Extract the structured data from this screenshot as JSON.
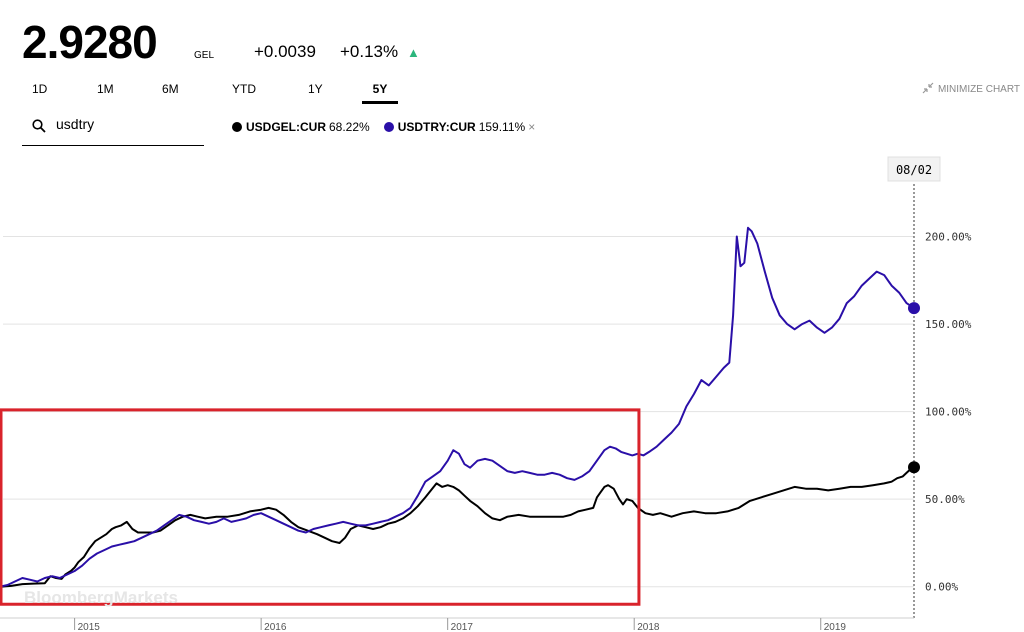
{
  "quote": {
    "price": "2.9280",
    "currency": "GEL",
    "change": "+0.0039",
    "change_pct": "+0.13%",
    "direction": "up"
  },
  "ranges": [
    {
      "label": "1D",
      "active": false
    },
    {
      "label": "1M",
      "active": false
    },
    {
      "label": "6M",
      "active": false
    },
    {
      "label": "YTD",
      "active": false
    },
    {
      "label": "1Y",
      "active": false
    },
    {
      "label": "5Y",
      "active": true
    }
  ],
  "minimize_label": "MINIMIZE CHART",
  "search": {
    "value": "usdtry"
  },
  "legend": [
    {
      "name": "USDGEL:CUR",
      "value": "68.22%",
      "color": "#000000",
      "removable": false
    },
    {
      "name": "USDTRY:CUR",
      "value": "159.11%",
      "color": "#2a0fa8",
      "removable": true,
      "remove_label": "×"
    }
  ],
  "watermark": "BloombergMarkets",
  "colors": {
    "accent_up": "#2cb67d",
    "highlight_box": "#d9232b",
    "grid": "#e3e3e3"
  },
  "chart_data": {
    "type": "line",
    "x_unit": "year",
    "xlim": [
      2014.6,
      2019.5
    ],
    "ylim": [
      -15,
      230
    ],
    "y_ticks": [
      0,
      50,
      100,
      150,
      200
    ],
    "y_tick_labels": [
      "0.00%",
      "50.00%",
      "100.00%",
      "150.00%",
      "200.00%"
    ],
    "x_ticks": [
      2015,
      2016,
      2017,
      2018,
      2019
    ],
    "x_tick_labels": [
      "2015",
      "2016",
      "2017",
      "2018",
      "2019"
    ],
    "cursor_label": "08/02",
    "grid": "horizontal",
    "series": [
      {
        "name": "USDGEL:CUR",
        "color": "#000000",
        "points": [
          [
            2014.6,
            0.0
          ],
          [
            2014.66,
            0.5
          ],
          [
            2014.72,
            1.5
          ],
          [
            2014.78,
            1.8
          ],
          [
            2014.84,
            2.0
          ],
          [
            2014.87,
            6.0
          ],
          [
            2014.9,
            5.0
          ],
          [
            2014.93,
            4.5
          ],
          [
            2014.95,
            7.0
          ],
          [
            2014.98,
            9.0
          ],
          [
            2015.0,
            11.0
          ],
          [
            2015.02,
            14.0
          ],
          [
            2015.05,
            17.0
          ],
          [
            2015.08,
            22.0
          ],
          [
            2015.11,
            26.0
          ],
          [
            2015.14,
            28.0
          ],
          [
            2015.17,
            30.0
          ],
          [
            2015.2,
            33.0
          ],
          [
            2015.22,
            34.0
          ],
          [
            2015.25,
            35.0
          ],
          [
            2015.28,
            37.0
          ],
          [
            2015.31,
            33.0
          ],
          [
            2015.34,
            31.0
          ],
          [
            2015.37,
            31.0
          ],
          [
            2015.42,
            31.0
          ],
          [
            2015.46,
            32.0
          ],
          [
            2015.5,
            35.0
          ],
          [
            2015.54,
            38.0
          ],
          [
            2015.58,
            40.0
          ],
          [
            2015.62,
            41.0
          ],
          [
            2015.66,
            40.0
          ],
          [
            2015.7,
            39.0
          ],
          [
            2015.76,
            40.0
          ],
          [
            2015.82,
            40.0
          ],
          [
            2015.88,
            41.0
          ],
          [
            2015.94,
            43.0
          ],
          [
            2016.0,
            44.0
          ],
          [
            2016.04,
            45.0
          ],
          [
            2016.08,
            44.0
          ],
          [
            2016.12,
            41.0
          ],
          [
            2016.16,
            37.0
          ],
          [
            2016.2,
            34.0
          ],
          [
            2016.25,
            32.0
          ],
          [
            2016.3,
            30.0
          ],
          [
            2016.34,
            28.0
          ],
          [
            2016.38,
            26.0
          ],
          [
            2016.42,
            25.0
          ],
          [
            2016.45,
            28.0
          ],
          [
            2016.48,
            33.0
          ],
          [
            2016.52,
            35.0
          ],
          [
            2016.56,
            34.0
          ],
          [
            2016.6,
            33.0
          ],
          [
            2016.64,
            34.0
          ],
          [
            2016.68,
            36.0
          ],
          [
            2016.72,
            37.0
          ],
          [
            2016.76,
            39.0
          ],
          [
            2016.8,
            42.0
          ],
          [
            2016.84,
            46.0
          ],
          [
            2016.88,
            51.0
          ],
          [
            2016.91,
            55.0
          ],
          [
            2016.94,
            59.0
          ],
          [
            2016.97,
            57.0
          ],
          [
            2017.0,
            58.0
          ],
          [
            2017.03,
            57.0
          ],
          [
            2017.06,
            55.0
          ],
          [
            2017.09,
            52.0
          ],
          [
            2017.12,
            49.0
          ],
          [
            2017.16,
            46.0
          ],
          [
            2017.2,
            42.0
          ],
          [
            2017.24,
            39.0
          ],
          [
            2017.28,
            38.0
          ],
          [
            2017.32,
            40.0
          ],
          [
            2017.38,
            41.0
          ],
          [
            2017.44,
            40.0
          ],
          [
            2017.5,
            40.0
          ],
          [
            2017.56,
            40.0
          ],
          [
            2017.62,
            40.0
          ],
          [
            2017.66,
            41.0
          ],
          [
            2017.7,
            43.0
          ],
          [
            2017.74,
            44.0
          ],
          [
            2017.78,
            45.0
          ],
          [
            2017.8,
            51.0
          ],
          [
            2017.82,
            54.0
          ],
          [
            2017.84,
            57.0
          ],
          [
            2017.86,
            58.0
          ],
          [
            2017.89,
            56.0
          ],
          [
            2017.92,
            50.0
          ],
          [
            2017.94,
            47.0
          ],
          [
            2017.96,
            50.0
          ],
          [
            2017.99,
            49.0
          ],
          [
            2018.02,
            45.0
          ],
          [
            2018.06,
            42.0
          ],
          [
            2018.1,
            41.0
          ],
          [
            2018.14,
            42.0
          ],
          [
            2018.2,
            40.0
          ],
          [
            2018.26,
            42.0
          ],
          [
            2018.32,
            43.0
          ],
          [
            2018.38,
            42.0
          ],
          [
            2018.44,
            42.0
          ],
          [
            2018.5,
            43.0
          ],
          [
            2018.56,
            45.0
          ],
          [
            2018.62,
            49.0
          ],
          [
            2018.68,
            51.0
          ],
          [
            2018.74,
            53.0
          ],
          [
            2018.8,
            55.0
          ],
          [
            2018.86,
            57.0
          ],
          [
            2018.92,
            56.0
          ],
          [
            2018.98,
            56.0
          ],
          [
            2019.04,
            55.0
          ],
          [
            2019.1,
            56.0
          ],
          [
            2019.16,
            57.0
          ],
          [
            2019.22,
            57.0
          ],
          [
            2019.28,
            58.0
          ],
          [
            2019.34,
            59.0
          ],
          [
            2019.38,
            60.0
          ],
          [
            2019.41,
            62.0
          ],
          [
            2019.44,
            63.0
          ],
          [
            2019.46,
            65.0
          ],
          [
            2019.48,
            67.0
          ],
          [
            2019.5,
            68.22
          ]
        ]
      },
      {
        "name": "USDTRY:CUR",
        "color": "#2a0fa8",
        "points": [
          [
            2014.6,
            0.0
          ],
          [
            2014.64,
            1.0
          ],
          [
            2014.68,
            3.0
          ],
          [
            2014.72,
            5.0
          ],
          [
            2014.76,
            4.0
          ],
          [
            2014.8,
            3.0
          ],
          [
            2014.84,
            5.0
          ],
          [
            2014.88,
            6.0
          ],
          [
            2014.92,
            5.0
          ],
          [
            2014.96,
            7.0
          ],
          [
            2015.0,
            9.0
          ],
          [
            2015.04,
            12.0
          ],
          [
            2015.08,
            16.0
          ],
          [
            2015.12,
            19.0
          ],
          [
            2015.16,
            21.0
          ],
          [
            2015.2,
            23.0
          ],
          [
            2015.24,
            24.0
          ],
          [
            2015.28,
            25.0
          ],
          [
            2015.32,
            26.0
          ],
          [
            2015.36,
            28.0
          ],
          [
            2015.4,
            30.0
          ],
          [
            2015.44,
            32.0
          ],
          [
            2015.48,
            35.0
          ],
          [
            2015.52,
            38.0
          ],
          [
            2015.56,
            41.0
          ],
          [
            2015.6,
            40.0
          ],
          [
            2015.64,
            38.0
          ],
          [
            2015.68,
            37.0
          ],
          [
            2015.72,
            36.0
          ],
          [
            2015.76,
            37.0
          ],
          [
            2015.8,
            39.0
          ],
          [
            2015.84,
            37.0
          ],
          [
            2015.88,
            38.0
          ],
          [
            2015.92,
            39.0
          ],
          [
            2015.96,
            41.0
          ],
          [
            2016.0,
            42.0
          ],
          [
            2016.04,
            40.0
          ],
          [
            2016.08,
            38.0
          ],
          [
            2016.12,
            36.0
          ],
          [
            2016.16,
            34.0
          ],
          [
            2016.2,
            32.0
          ],
          [
            2016.24,
            31.0
          ],
          [
            2016.28,
            33.0
          ],
          [
            2016.32,
            34.0
          ],
          [
            2016.36,
            35.0
          ],
          [
            2016.4,
            36.0
          ],
          [
            2016.44,
            37.0
          ],
          [
            2016.48,
            36.0
          ],
          [
            2016.52,
            35.0
          ],
          [
            2016.56,
            35.0
          ],
          [
            2016.6,
            36.0
          ],
          [
            2016.64,
            37.0
          ],
          [
            2016.68,
            38.0
          ],
          [
            2016.72,
            40.0
          ],
          [
            2016.76,
            42.0
          ],
          [
            2016.8,
            45.0
          ],
          [
            2016.84,
            52.0
          ],
          [
            2016.88,
            60.0
          ],
          [
            2016.92,
            63.0
          ],
          [
            2016.96,
            66.0
          ],
          [
            2017.0,
            72.0
          ],
          [
            2017.03,
            78.0
          ],
          [
            2017.06,
            76.0
          ],
          [
            2017.09,
            70.0
          ],
          [
            2017.12,
            68.0
          ],
          [
            2017.16,
            72.0
          ],
          [
            2017.2,
            73.0
          ],
          [
            2017.24,
            72.0
          ],
          [
            2017.28,
            69.0
          ],
          [
            2017.32,
            66.0
          ],
          [
            2017.36,
            65.0
          ],
          [
            2017.4,
            66.0
          ],
          [
            2017.44,
            65.0
          ],
          [
            2017.48,
            64.0
          ],
          [
            2017.52,
            64.0
          ],
          [
            2017.56,
            65.0
          ],
          [
            2017.6,
            64.0
          ],
          [
            2017.64,
            62.0
          ],
          [
            2017.68,
            61.0
          ],
          [
            2017.72,
            63.0
          ],
          [
            2017.76,
            66.0
          ],
          [
            2017.8,
            72.0
          ],
          [
            2017.84,
            78.0
          ],
          [
            2017.87,
            80.0
          ],
          [
            2017.9,
            79.0
          ],
          [
            2017.93,
            77.0
          ],
          [
            2017.96,
            76.0
          ],
          [
            2017.99,
            75.0
          ],
          [
            2018.02,
            76.0
          ],
          [
            2018.05,
            75.0
          ],
          [
            2018.08,
            77.0
          ],
          [
            2018.12,
            80.0
          ],
          [
            2018.16,
            84.0
          ],
          [
            2018.2,
            88.0
          ],
          [
            2018.24,
            93.0
          ],
          [
            2018.28,
            103.0
          ],
          [
            2018.32,
            110.0
          ],
          [
            2018.36,
            118.0
          ],
          [
            2018.4,
            115.0
          ],
          [
            2018.44,
            120.0
          ],
          [
            2018.48,
            125.0
          ],
          [
            2018.51,
            128.0
          ],
          [
            2018.53,
            155.0
          ],
          [
            2018.55,
            200.0
          ],
          [
            2018.57,
            183.0
          ],
          [
            2018.59,
            185.0
          ],
          [
            2018.61,
            205.0
          ],
          [
            2018.63,
            203.0
          ],
          [
            2018.66,
            196.0
          ],
          [
            2018.7,
            180.0
          ],
          [
            2018.74,
            165.0
          ],
          [
            2018.78,
            155.0
          ],
          [
            2018.82,
            150.0
          ],
          [
            2018.86,
            147.0
          ],
          [
            2018.9,
            150.0
          ],
          [
            2018.94,
            152.0
          ],
          [
            2018.98,
            148.0
          ],
          [
            2019.02,
            145.0
          ],
          [
            2019.06,
            148.0
          ],
          [
            2019.1,
            153.0
          ],
          [
            2019.14,
            162.0
          ],
          [
            2019.18,
            166.0
          ],
          [
            2019.22,
            172.0
          ],
          [
            2019.26,
            176.0
          ],
          [
            2019.3,
            180.0
          ],
          [
            2019.34,
            178.0
          ],
          [
            2019.38,
            172.0
          ],
          [
            2019.42,
            168.0
          ],
          [
            2019.46,
            162.0
          ],
          [
            2019.5,
            159.11
          ]
        ]
      }
    ],
    "annotation_box": {
      "x": [
        2014.6,
        2018.02
      ],
      "y": [
        -10,
        101
      ]
    }
  }
}
